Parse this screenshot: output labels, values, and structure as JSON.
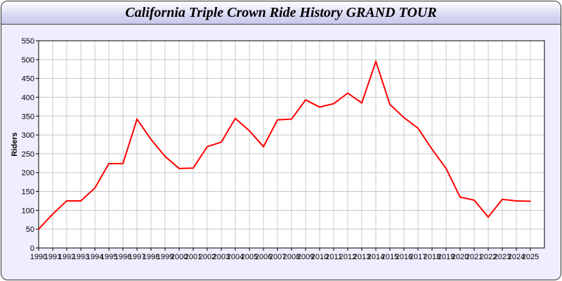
{
  "chart_data": {
    "type": "line",
    "title": "California Triple Crown Ride History GRAND TOUR",
    "xlabel": "",
    "ylabel": "Riders",
    "xlim": [
      1990,
      2026
    ],
    "ylim": [
      0,
      550
    ],
    "yticks": [
      0,
      50,
      100,
      150,
      200,
      250,
      300,
      350,
      400,
      450,
      500,
      550
    ],
    "grid": true,
    "line_color": "#ff0000",
    "x": [
      1990,
      1991,
      1992,
      1993,
      1994,
      1995,
      1996,
      1997,
      1998,
      1999,
      2000,
      2001,
      2002,
      2003,
      2004,
      2005,
      2006,
      2007,
      2008,
      2009,
      2010,
      2011,
      2012,
      2013,
      2014,
      2015,
      2016,
      2017,
      2018,
      2019,
      2020,
      2021,
      2022,
      2023,
      2024,
      2025
    ],
    "values": [
      50,
      90,
      125,
      125,
      159,
      224,
      224,
      342,
      288,
      243,
      211,
      212,
      269,
      281,
      344,
      311,
      269,
      340,
      342,
      393,
      374,
      383,
      411,
      385,
      495,
      381,
      346,
      318,
      262,
      211,
      135,
      127,
      82,
      129,
      125,
      124
    ]
  }
}
